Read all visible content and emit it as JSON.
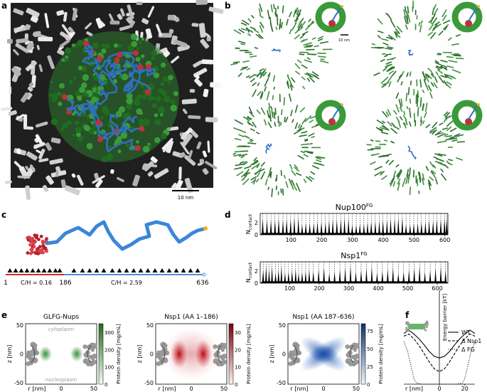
{
  "panels": {
    "a": {
      "letter": "a",
      "scale_label": "10 nm"
    },
    "b": {
      "letter": "b",
      "scale_label": "10 nm"
    },
    "c": {
      "letter": "c",
      "res_start": "1",
      "res_mid": "186",
      "res_end": "636",
      "ch_left": "C/H = 0.16",
      "ch_right": "C/H = 2.59"
    },
    "d": {
      "letter": "d"
    },
    "e": {
      "letter": "e"
    },
    "f": {
      "letter": "f"
    }
  },
  "chart_data": [
    {
      "type": "bar",
      "panel": "d-top",
      "title": "Nup100",
      "title_sup": "FG",
      "ylabel": "N",
      "ylabel_sub": "contact",
      "yticks": [
        "0",
        "2"
      ],
      "xticks": [
        "100",
        "200",
        "300",
        "400",
        "500",
        "600"
      ],
      "xlim": [
        0,
        610
      ],
      "ylim": [
        0,
        3.5
      ],
      "peak_positions": [
        8,
        22,
        35,
        48,
        60,
        74,
        86,
        99,
        111,
        124,
        136,
        148,
        161,
        174,
        186,
        199,
        212,
        224,
        236,
        249,
        262,
        274,
        287,
        299,
        312,
        324,
        337,
        349,
        361,
        374,
        387,
        399,
        412,
        424,
        437,
        449,
        462,
        474,
        487,
        499,
        512,
        524,
        537,
        549,
        562,
        574,
        587,
        599,
        606
      ]
    },
    {
      "type": "bar",
      "panel": "d-bottom",
      "title": "Nsp1",
      "title_sup": "FG",
      "ylabel": "N",
      "ylabel_sub": "contact",
      "yticks": [
        "0",
        "2"
      ],
      "xticks": [
        "100",
        "200",
        "300",
        "400",
        "500",
        "600"
      ],
      "xlim": [
        0,
        636
      ],
      "ylim": [
        0,
        3.5
      ],
      "peak_positions": [
        10,
        20,
        30,
        40,
        52,
        62,
        72,
        84,
        96,
        108,
        120,
        130,
        142,
        154,
        166,
        180,
        198,
        216,
        234,
        252,
        270,
        288,
        306,
        324,
        342,
        360,
        378,
        396,
        414,
        432,
        450,
        468,
        486,
        504,
        522,
        540,
        558,
        576,
        594,
        612,
        628
      ]
    },
    {
      "type": "heatmap",
      "panel": "e1",
      "title": "GLFG-Nups",
      "xlabel": "r [nm]",
      "ylabel": "z [nm]",
      "xticks": [
        "-50",
        "0",
        "50"
      ],
      "yticks": [
        "50",
        "0",
        "-50"
      ],
      "top_label": "cytoplasm",
      "bottom_label": "nucleoplasm",
      "colorbar_label": "Protein density [mg/mL]",
      "colorbar_ticks": [
        "300",
        "200",
        "100",
        "0"
      ],
      "color": "#2e8b2e",
      "vmax": 350
    },
    {
      "type": "heatmap",
      "panel": "e2",
      "title": "Nsp1 (AA 1–186)",
      "xlabel": "r [nm]",
      "ylabel": "z [nm]",
      "xticks": [
        "-50",
        "0",
        "50"
      ],
      "yticks": [
        "50",
        "0",
        "-50"
      ],
      "colorbar_label": "Protein density [mg/mL]",
      "colorbar_ticks": [
        "30",
        "20",
        "10",
        "0"
      ],
      "color": "#b3000b",
      "vmax": 35
    },
    {
      "type": "heatmap",
      "panel": "e3",
      "title": "Nsp1 (AA 187–636)",
      "xlabel": "r [nm]",
      "ylabel": "z [nm]",
      "xticks": [
        "-50",
        "0",
        "50"
      ],
      "yticks": [
        "50",
        "0",
        "-50"
      ],
      "colorbar_label": "Protein density [mg/mL]",
      "colorbar_ticks": [
        "75",
        "50",
        "25",
        "0"
      ],
      "color": "#1f4ea0",
      "vmax": 85
    },
    {
      "type": "line",
      "panel": "f",
      "xlabel": "r [nm]",
      "ylabel": "Energy barrier [kT]",
      "xticks": [
        "0",
        "20"
      ],
      "xlim": [
        -28,
        28
      ],
      "ylim": [
        0,
        12
      ],
      "series": [
        {
          "name": "WT",
          "dash": "solid",
          "x": [
            -28,
            -24,
            -20,
            -16,
            -12,
            -8,
            -4,
            0,
            4,
            8,
            12,
            16,
            20,
            24,
            28
          ],
          "y": [
            9.3,
            9.9,
            9.2,
            8.3,
            7.2,
            6.0,
            5.1,
            4.8,
            5.1,
            6.0,
            7.2,
            8.3,
            9.2,
            9.9,
            9.3
          ]
        },
        {
          "name": "Δ Nsp1",
          "dash": "dashed",
          "x": [
            -28,
            -24,
            -20,
            -16,
            -12,
            -8,
            -4,
            0,
            4,
            8,
            12,
            16,
            20,
            24,
            28
          ],
          "y": [
            8.8,
            9.2,
            8.3,
            7.1,
            5.6,
            4.1,
            2.8,
            2.3,
            2.8,
            4.1,
            5.6,
            7.1,
            8.3,
            9.2,
            8.8
          ]
        },
        {
          "name": "Δ FG",
          "dash": "dotted",
          "x": [
            -28,
            -25,
            -22,
            -20,
            -18,
            -14,
            -8,
            0,
            8,
            14,
            18,
            20,
            22,
            25,
            28
          ],
          "y": [
            7.8,
            6.0,
            3.0,
            1.0,
            0.2,
            0.0,
            0.0,
            0.0,
            0.0,
            0.0,
            0.2,
            1.0,
            3.0,
            6.0,
            7.8
          ]
        }
      ]
    }
  ]
}
